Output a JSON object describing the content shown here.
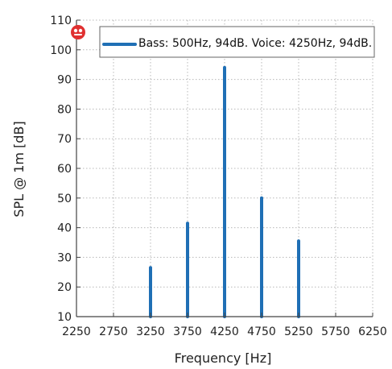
{
  "chart_data": {
    "type": "bar",
    "title": "",
    "xlabel": "Frequency [Hz]",
    "ylabel": "SPL @ 1m [dB]",
    "xlim": [
      2250,
      6250
    ],
    "ylim": [
      10,
      110
    ],
    "x_ticks": [
      2250,
      2750,
      3250,
      3750,
      4250,
      4750,
      5250,
      5750,
      6250
    ],
    "y_ticks": [
      10,
      20,
      30,
      40,
      50,
      60,
      70,
      80,
      90,
      100,
      110
    ],
    "grid": true,
    "legend_position": "top-right",
    "series": [
      {
        "name": "Bass: 500Hz, 94dB. Voice: 4250Hz, 94dB.",
        "color": "#1f6fb5",
        "x": [
          3250,
          3750,
          4250,
          4750,
          5250
        ],
        "values": [
          26.5,
          41.5,
          94,
          50,
          35.5
        ]
      }
    ],
    "logo_color": "#e03030",
    "logo_icon": "red-badge-icon"
  }
}
